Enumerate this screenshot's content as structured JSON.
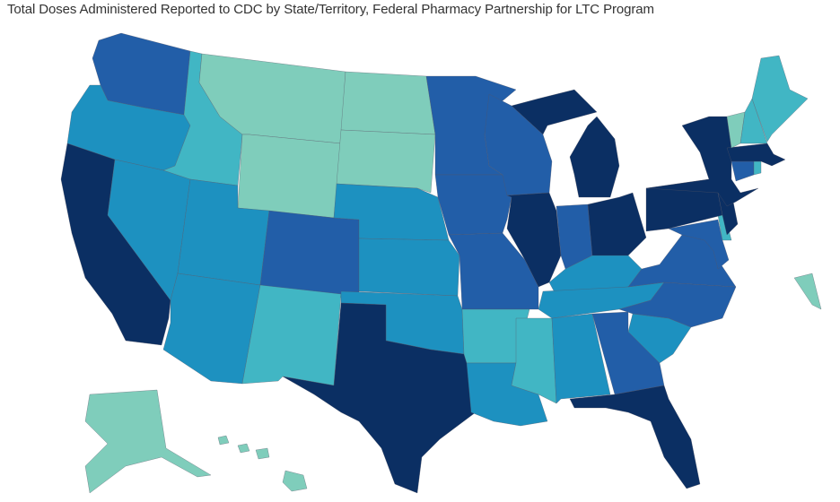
{
  "title": "Total Doses Administered Reported to CDC by State/Territory, Federal Pharmacy Partnership for LTC Program",
  "color_scale": {
    "bin1": "#7fcdbb",
    "bin2": "#41b6c4",
    "bin3": "#1d91c0",
    "bin4": "#225ea8",
    "bin5": "#0b2f63"
  },
  "states": [
    {
      "code": "WA",
      "bin": "bin4"
    },
    {
      "code": "OR",
      "bin": "bin3"
    },
    {
      "code": "CA",
      "bin": "bin5"
    },
    {
      "code": "NV",
      "bin": "bin3"
    },
    {
      "code": "ID",
      "bin": "bin2"
    },
    {
      "code": "MT",
      "bin": "bin1"
    },
    {
      "code": "WY",
      "bin": "bin1"
    },
    {
      "code": "UT",
      "bin": "bin3"
    },
    {
      "code": "AZ",
      "bin": "bin3"
    },
    {
      "code": "CO",
      "bin": "bin4"
    },
    {
      "code": "NM",
      "bin": "bin2"
    },
    {
      "code": "ND",
      "bin": "bin1"
    },
    {
      "code": "SD",
      "bin": "bin1"
    },
    {
      "code": "NE",
      "bin": "bin3"
    },
    {
      "code": "KS",
      "bin": "bin3"
    },
    {
      "code": "OK",
      "bin": "bin3"
    },
    {
      "code": "TX",
      "bin": "bin5"
    },
    {
      "code": "MN",
      "bin": "bin4"
    },
    {
      "code": "IA",
      "bin": "bin4"
    },
    {
      "code": "MO",
      "bin": "bin4"
    },
    {
      "code": "AR",
      "bin": "bin2"
    },
    {
      "code": "LA",
      "bin": "bin3"
    },
    {
      "code": "WI",
      "bin": "bin4"
    },
    {
      "code": "IL",
      "bin": "bin5"
    },
    {
      "code": "MS",
      "bin": "bin2"
    },
    {
      "code": "AL",
      "bin": "bin3"
    },
    {
      "code": "MI",
      "bin": "bin5"
    },
    {
      "code": "IN",
      "bin": "bin4"
    },
    {
      "code": "OH",
      "bin": "bin5"
    },
    {
      "code": "KY",
      "bin": "bin3"
    },
    {
      "code": "TN",
      "bin": "bin3"
    },
    {
      "code": "GA",
      "bin": "bin4"
    },
    {
      "code": "FL",
      "bin": "bin5"
    },
    {
      "code": "SC",
      "bin": "bin3"
    },
    {
      "code": "NC",
      "bin": "bin4"
    },
    {
      "code": "VA",
      "bin": "bin4"
    },
    {
      "code": "MD",
      "bin": "bin4"
    },
    {
      "code": "DE",
      "bin": "bin2"
    },
    {
      "code": "PA",
      "bin": "bin5"
    },
    {
      "code": "NJ",
      "bin": "bin5"
    },
    {
      "code": "NY",
      "bin": "bin5"
    },
    {
      "code": "CT",
      "bin": "bin4"
    },
    {
      "code": "RI",
      "bin": "bin2"
    },
    {
      "code": "MA",
      "bin": "bin5"
    },
    {
      "code": "VT",
      "bin": "bin1"
    },
    {
      "code": "NH",
      "bin": "bin2"
    },
    {
      "code": "ME",
      "bin": "bin2"
    },
    {
      "code": "AK",
      "bin": "bin1"
    },
    {
      "code": "HI",
      "bin": "bin1"
    },
    {
      "code": "DC",
      "bin": "bin1"
    }
  ]
}
